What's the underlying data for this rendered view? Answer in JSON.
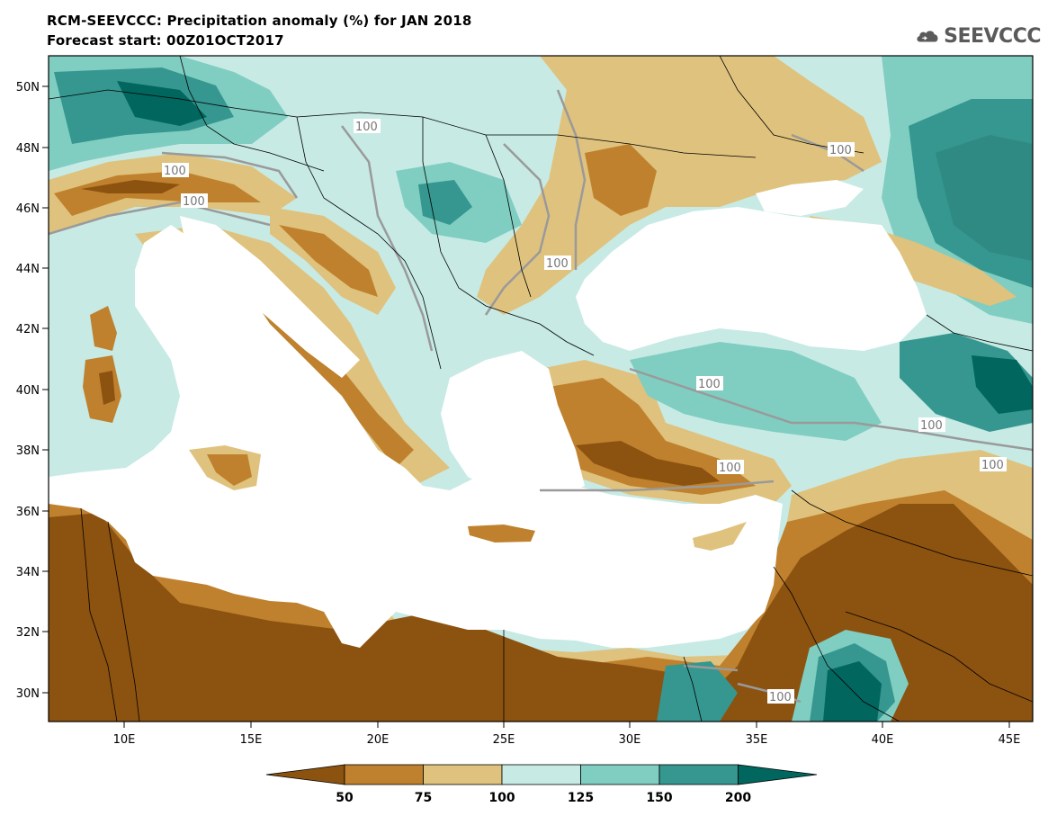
{
  "header": {
    "title_line1": "RCM-SEEVCCC: Precipitation anomaly (%) for JAN 2018",
    "title_line2": "Forecast start: 00Z01OCT2017",
    "logo_text": "SEEVCCC"
  },
  "map": {
    "lat_labels": [
      "50N",
      "48N",
      "46N",
      "44N",
      "42N",
      "40N",
      "38N",
      "36N",
      "34N",
      "32N",
      "30N"
    ],
    "lon_labels": [
      "10E",
      "15E",
      "20E",
      "25E",
      "30E",
      "35E",
      "40E",
      "45E"
    ],
    "contour_label": "100",
    "colors": {
      "below_50": "#8c5210",
      "50_75": "#bf812d",
      "75_100": "#dfc27d",
      "100_125": "#c7eae5",
      "125_150": "#80cdc1",
      "150_200": "#35978f",
      "above_200": "#01665e",
      "sea": "#ffffff"
    }
  },
  "colorbar": {
    "ticks": [
      "50",
      "75",
      "100",
      "125",
      "150",
      "200"
    ],
    "colors": [
      "#8c5210",
      "#bf812d",
      "#dfc27d",
      "#c7eae5",
      "#80cdc1",
      "#35978f",
      "#01665e"
    ]
  }
}
